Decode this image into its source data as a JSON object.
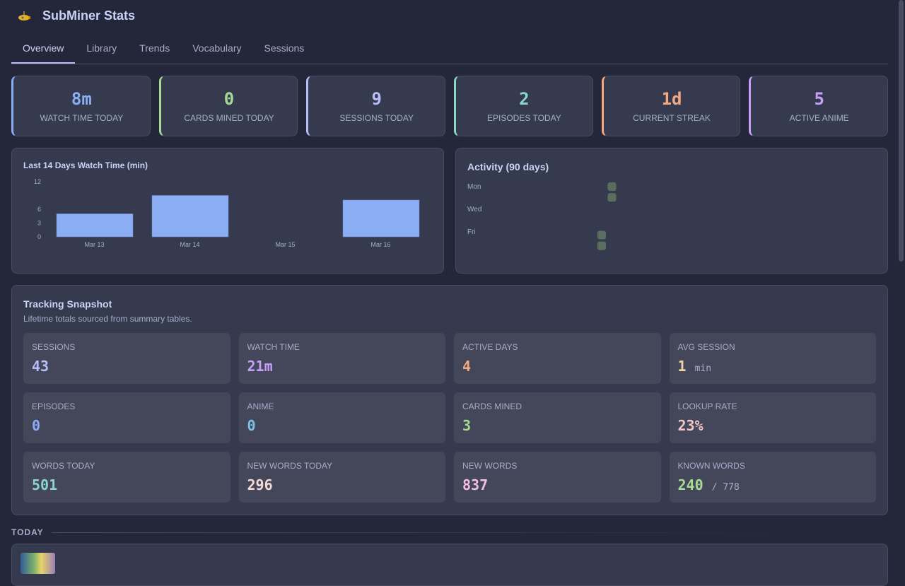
{
  "app": {
    "title": "SubMiner Stats",
    "logo_icon": "submarine-icon"
  },
  "tabs": [
    {
      "label": "Overview",
      "active": true
    },
    {
      "label": "Library"
    },
    {
      "label": "Trends"
    },
    {
      "label": "Vocabulary"
    },
    {
      "label": "Sessions"
    }
  ],
  "kpis": [
    {
      "value": "8m",
      "label": "WATCH TIME TODAY",
      "color": "#8aadf4"
    },
    {
      "value": "0",
      "label": "CARDS MINED TODAY",
      "color": "#a6da95"
    },
    {
      "value": "9",
      "label": "SESSIONS TODAY",
      "color": "#b7bdf8"
    },
    {
      "value": "2",
      "label": "EPISODES TODAY",
      "color": "#8bd5ca"
    },
    {
      "value": "1d",
      "label": "CURRENT STREAK",
      "color": "#f5a97f"
    },
    {
      "value": "5",
      "label": "ACTIVE ANIME",
      "color": "#c6a0f6"
    }
  ],
  "chart_data": [
    {
      "type": "bar",
      "title": "Last 14 Days Watch Time (min)",
      "categories": [
        "Mar 13",
        "Mar 14",
        "Mar 15",
        "Mar 16"
      ],
      "values": [
        5,
        9,
        0,
        8
      ],
      "yticks": [
        "0",
        "3",
        "6",
        "12"
      ],
      "ylim": [
        0,
        12
      ],
      "color": "#8aadf4",
      "grid": false
    },
    {
      "type": "heatmap",
      "title": "Activity (90 days)",
      "row_labels": [
        "Mon",
        "Wed",
        "Fri"
      ],
      "active_cells": [
        {
          "week": 12,
          "day": "Sat"
        },
        {
          "week": 12,
          "day": "Sun"
        },
        {
          "week": 13,
          "day": "Mon"
        },
        {
          "week": 13,
          "day": "Tue"
        }
      ],
      "color": "#5b6e5d"
    }
  ],
  "snapshot": {
    "title": "Tracking Snapshot",
    "subtitle": "Lifetime totals sourced from summary tables.",
    "tiles": [
      {
        "label": "SESSIONS",
        "value": "43",
        "color": "#b7bdf8"
      },
      {
        "label": "WATCH TIME",
        "value": "21m",
        "color": "#c6a0f6"
      },
      {
        "label": "ACTIVE DAYS",
        "value": "4",
        "color": "#f5a97f"
      },
      {
        "label": "AVG SESSION",
        "value": "1",
        "unit": "min",
        "color": "#eed49f"
      },
      {
        "label": "EPISODES",
        "value": "0",
        "color": "#8aadf4"
      },
      {
        "label": "ANIME",
        "value": "0",
        "color": "#7dc4e4"
      },
      {
        "label": "CARDS MINED",
        "value": "3",
        "color": "#a6da95"
      },
      {
        "label": "LOOKUP RATE",
        "value": "23%",
        "color": "#f0c6c6"
      },
      {
        "label": "WORDS TODAY",
        "value": "501",
        "color": "#8bd5ca"
      },
      {
        "label": "NEW WORDS TODAY",
        "value": "296",
        "color": "#f4dbd6"
      },
      {
        "label": "NEW WORDS",
        "value": "837",
        "color": "#f5bde6"
      },
      {
        "label": "KNOWN WORDS",
        "value": "240",
        "unit": "/ 778",
        "color": "#a6da95"
      }
    ]
  },
  "today": {
    "heading": "TODAY"
  }
}
